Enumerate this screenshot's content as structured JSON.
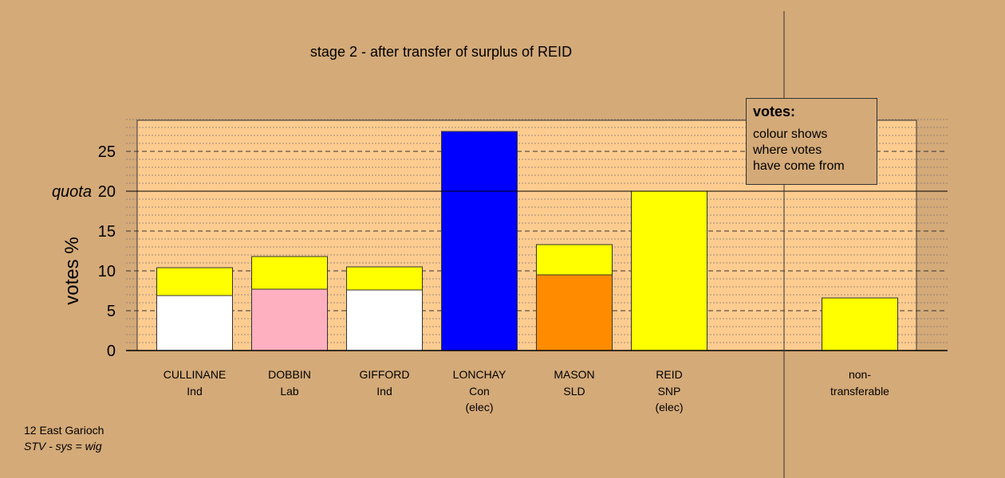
{
  "chart_data": {
    "type": "bar",
    "title": "stage 2 - after transfer of surplus of REID",
    "ylabel": "votes %",
    "ylim": [
      0,
      29
    ],
    "yticks": [
      0,
      5,
      10,
      15,
      20,
      25
    ],
    "quota": 20,
    "quota_label": "quota",
    "grid": "dotted minor lines every 1, dashed major lines every 5",
    "categories": [
      {
        "name": "CULLINANE",
        "party": "Ind",
        "status": "",
        "segments": [
          {
            "value": 6.9,
            "color": "#ffffff"
          },
          {
            "value": 3.5,
            "color": "#ffff00"
          }
        ]
      },
      {
        "name": "DOBBIN",
        "party": "Lab",
        "status": "",
        "segments": [
          {
            "value": 7.7,
            "color": "#ffb0c0"
          },
          {
            "value": 4.1,
            "color": "#ffff00"
          }
        ]
      },
      {
        "name": "GIFFORD",
        "party": "Ind",
        "status": "",
        "segments": [
          {
            "value": 7.6,
            "color": "#ffffff"
          },
          {
            "value": 2.9,
            "color": "#ffff00"
          }
        ]
      },
      {
        "name": "LONCHAY",
        "party": "Con",
        "status": "(elec)",
        "segments": [
          {
            "value": 27.5,
            "color": "#0000ff"
          }
        ]
      },
      {
        "name": "MASON",
        "party": "SLD",
        "status": "",
        "segments": [
          {
            "value": 9.5,
            "color": "#ff8c00"
          },
          {
            "value": 3.8,
            "color": "#ffff00"
          }
        ]
      },
      {
        "name": "REID",
        "party": "SNP",
        "status": "(elec)",
        "segments": [
          {
            "value": 20.0,
            "color": "#ffff00"
          }
        ]
      }
    ],
    "nontransferable": {
      "label_line1": "non-",
      "label_line2": "transferable",
      "value": 6.6,
      "color": "#ffff00"
    }
  },
  "legend": {
    "title": "votes:",
    "lines": [
      "colour shows",
      "where votes",
      "have come from"
    ]
  },
  "footer": {
    "ward": "12 East Garioch",
    "system": "STV - sys = wig"
  },
  "colors": {
    "background": "#d4aa78",
    "plot_area": "#ffcc90"
  }
}
